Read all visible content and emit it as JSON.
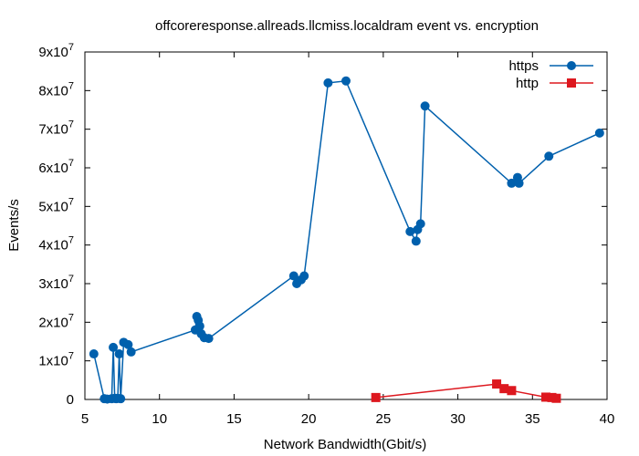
{
  "chart_data": {
    "type": "line",
    "title": "offcoreresponse.allreads.llcmiss.localdram event vs. encryption",
    "xlabel": "Network Bandwidth(Gbit/s)",
    "ylabel": "Events/s",
    "xlim": [
      5,
      40
    ],
    "ylim": [
      0,
      90000000
    ],
    "x_ticks": [
      5,
      10,
      15,
      20,
      25,
      30,
      35,
      40
    ],
    "y_ticks": [
      {
        "value": 0,
        "mant": "0",
        "exp": ""
      },
      {
        "value": 10000000,
        "mant": "1x10",
        "exp": "7"
      },
      {
        "value": 20000000,
        "mant": "2x10",
        "exp": "7"
      },
      {
        "value": 30000000,
        "mant": "3x10",
        "exp": "7"
      },
      {
        "value": 40000000,
        "mant": "4x10",
        "exp": "7"
      },
      {
        "value": 50000000,
        "mant": "5x10",
        "exp": "7"
      },
      {
        "value": 60000000,
        "mant": "6x10",
        "exp": "7"
      },
      {
        "value": 70000000,
        "mant": "7x10",
        "exp": "7"
      },
      {
        "value": 80000000,
        "mant": "8x10",
        "exp": "7"
      },
      {
        "value": 90000000,
        "mant": "9x10",
        "exp": "7"
      }
    ],
    "grid": false,
    "legend_position": "top-right",
    "series": [
      {
        "name": "https",
        "color": "#0060ad",
        "marker": "circle",
        "points": [
          [
            5.6,
            11800000
          ],
          [
            6.3,
            200000
          ],
          [
            6.5,
            100000
          ],
          [
            6.8,
            200000
          ],
          [
            6.9,
            13500000
          ],
          [
            7.0,
            300000
          ],
          [
            7.1,
            200000
          ],
          [
            7.2,
            300000
          ],
          [
            7.3,
            11800000
          ],
          [
            7.4,
            200000
          ],
          [
            7.6,
            14800000
          ],
          [
            7.9,
            14200000
          ],
          [
            8.1,
            12300000
          ],
          [
            12.4,
            18000000
          ],
          [
            12.5,
            21500000
          ],
          [
            12.6,
            20500000
          ],
          [
            12.7,
            19000000
          ],
          [
            12.8,
            17000000
          ],
          [
            13.0,
            16000000
          ],
          [
            13.3,
            15800000
          ],
          [
            19.0,
            32000000
          ],
          [
            19.2,
            30000000
          ],
          [
            19.5,
            31000000
          ],
          [
            19.7,
            32000000
          ],
          [
            21.3,
            82000000
          ],
          [
            22.5,
            82500000
          ],
          [
            26.8,
            43500000
          ],
          [
            27.2,
            41000000
          ],
          [
            27.3,
            44000000
          ],
          [
            27.5,
            45500000
          ],
          [
            27.8,
            76000000
          ],
          [
            33.6,
            56000000
          ],
          [
            34.0,
            57500000
          ],
          [
            34.1,
            56000000
          ],
          [
            36.1,
            63000000
          ],
          [
            39.5,
            69000000
          ]
        ]
      },
      {
        "name": "http",
        "color": "#dd181f",
        "marker": "square",
        "points": [
          [
            24.5,
            500000
          ],
          [
            32.6,
            4000000
          ],
          [
            33.1,
            2800000
          ],
          [
            33.6,
            2300000
          ],
          [
            35.9,
            600000
          ],
          [
            36.3,
            500000
          ],
          [
            36.6,
            300000
          ]
        ]
      }
    ]
  }
}
